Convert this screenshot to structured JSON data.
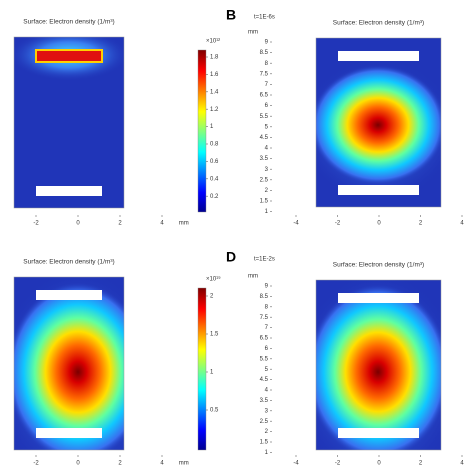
{
  "panels": [
    {
      "title": "Surface: Electron density (1/m³)",
      "x_ticks": [
        "-2",
        "0",
        "2",
        "4"
      ],
      "x_unit": "mm",
      "colorbar": {
        "exponent": "×10¹²",
        "ticks": [
          "1.8",
          "1.6",
          "1.4",
          "1.2",
          "1",
          "0.8",
          "0.6",
          "0.4",
          "0.2"
        ]
      }
    },
    {
      "label": "B",
      "time": "t=1E-6s",
      "title": "Surface: Electron density (1/m³)",
      "y_unit": "mm",
      "y_ticks": [
        "9",
        "8.5",
        "8",
        "7.5",
        "7",
        "6.5",
        "6",
        "5.5",
        "5",
        "4.5",
        "4",
        "3.5",
        "3",
        "2.5",
        "2",
        "1.5",
        "1"
      ],
      "x_ticks": [
        "-4",
        "-2",
        "0",
        "2",
        "4"
      ]
    },
    {
      "title": "Surface: Electron density (1/m³)",
      "x_ticks": [
        "-2",
        "0",
        "2",
        "4"
      ],
      "x_unit": "mm",
      "colorbar": {
        "exponent": "×10¹⁹",
        "ticks": [
          "2",
          "1.5",
          "1",
          "0.5"
        ]
      }
    },
    {
      "label": "D",
      "time": "t=1E-2s",
      "title": "Surface: Electron density (1/m³)",
      "y_unit": "mm",
      "y_ticks": [
        "9",
        "8.5",
        "8",
        "7.5",
        "7",
        "6.5",
        "6",
        "5.5",
        "5",
        "4.5",
        "4",
        "3.5",
        "3",
        "2.5",
        "2",
        "1.5",
        "1"
      ],
      "x_ticks": [
        "-4",
        "-2",
        "0",
        "2",
        "4"
      ]
    }
  ]
}
